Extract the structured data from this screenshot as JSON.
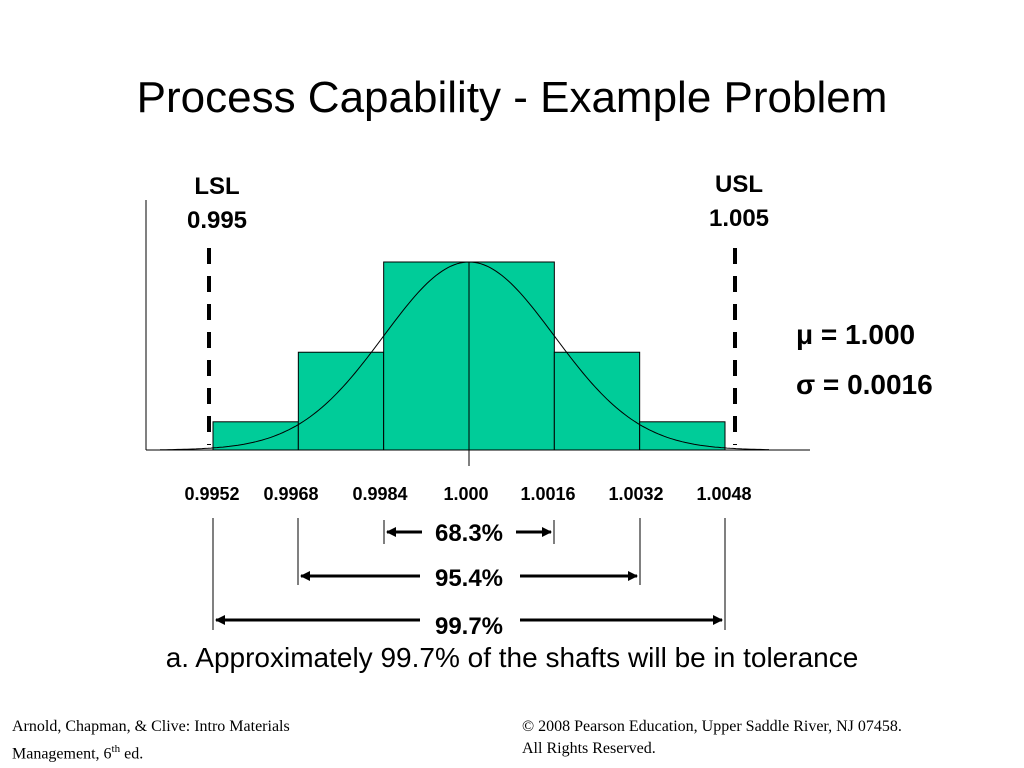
{
  "title": "Process Capability - Example Problem",
  "lsl": {
    "name": "LSL",
    "value": "0.995"
  },
  "usl": {
    "name": "USL",
    "value": "1.005"
  },
  "stats": {
    "mu": "μ = 1.000",
    "sigma": "σ = 0.0016"
  },
  "histogram": {
    "bin_edges": [
      0.9952,
      0.9968,
      0.9984,
      1.0,
      1.0016,
      1.0032,
      1.0048
    ],
    "relative_heights": [
      0.15,
      0.52,
      1.0,
      1.0,
      0.52,
      0.15
    ],
    "bar_color": "#00cc99"
  },
  "ticks": [
    "0.9952",
    "0.9968",
    "0.9984",
    "1.000",
    "1.0016",
    "1.0032",
    "1.0048"
  ],
  "ranges": {
    "r683": "68.3%",
    "r954": "95.4%",
    "r997": "99.7%"
  },
  "conclusion": "a. Approximately 99.7% of the shafts will be in tolerance",
  "footer": {
    "left_line1": "Arnold, Chapman, & Clive: Intro Materials",
    "left_line2_pre": "Management, 6",
    "left_line2_sup": "th",
    "left_line2_post": " ed.",
    "right_line1": "© 2008 Pearson Education, Upper Saddle River, NJ 07458.",
    "right_line2": "All Rights Reserved."
  }
}
